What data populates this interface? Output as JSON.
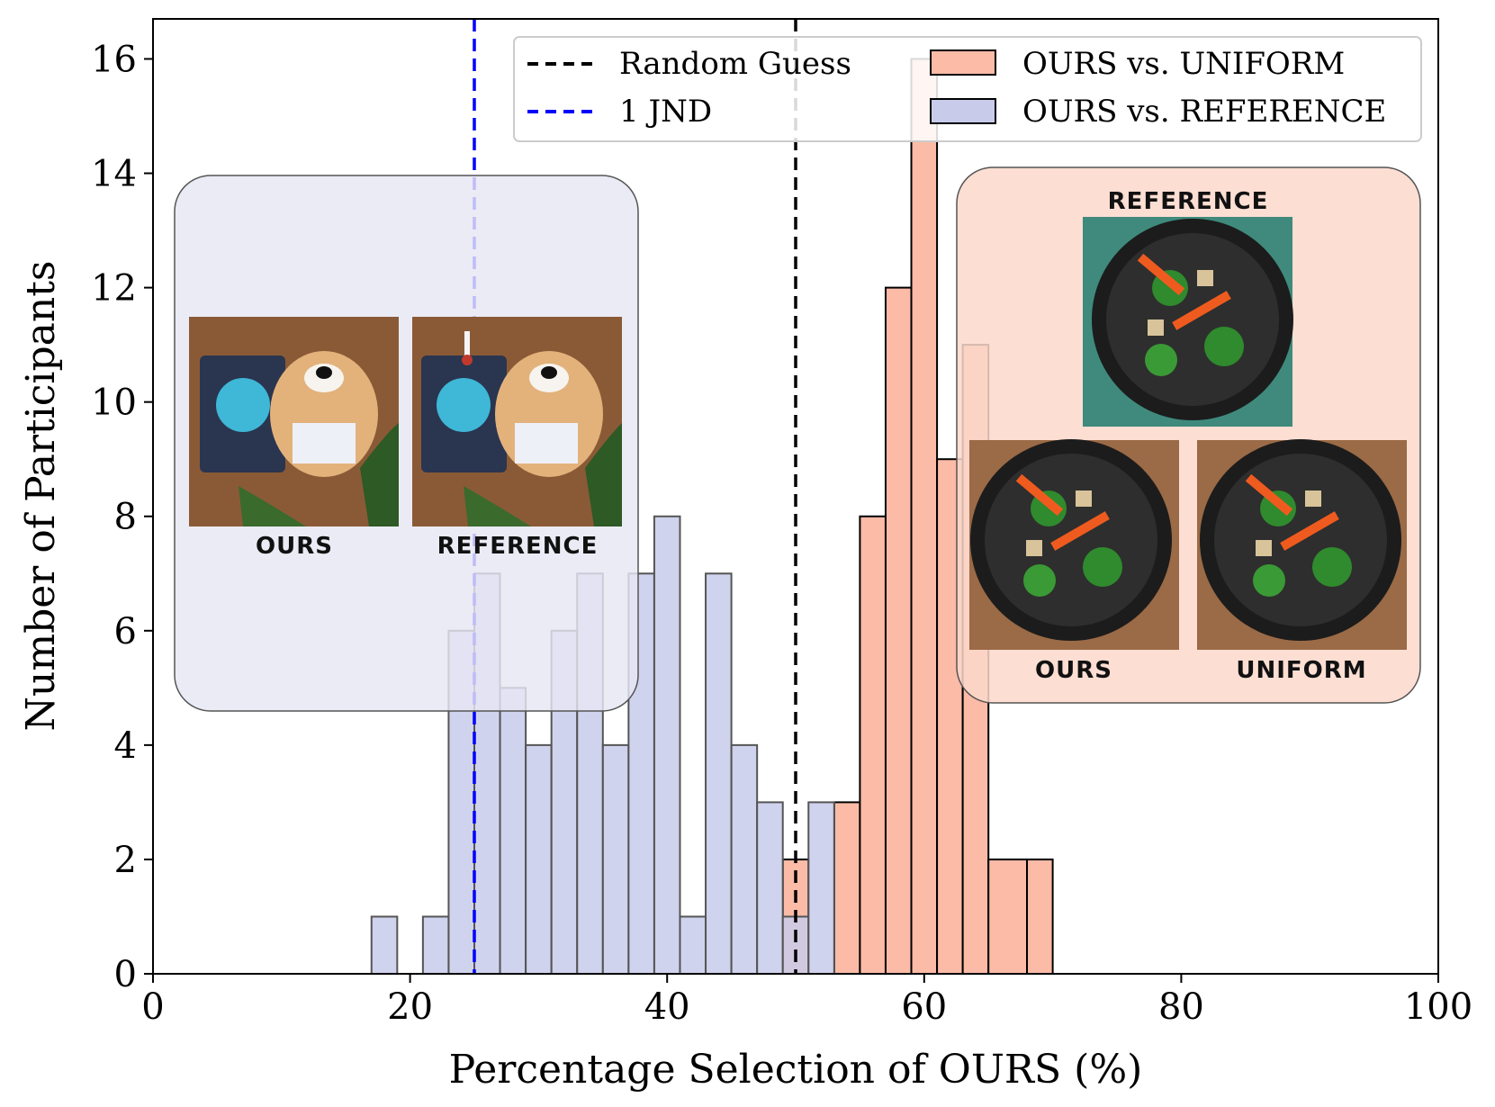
{
  "chart_data": {
    "type": "bar",
    "xlabel": "Percentage Selection of OURS (%)",
    "ylabel": "Number of Participants",
    "xlim": [
      0,
      100
    ],
    "ylim": [
      0,
      16.7
    ],
    "xticks": [
      0,
      20,
      40,
      60,
      80,
      100
    ],
    "yticks": [
      0,
      2,
      4,
      6,
      8,
      10,
      12,
      14,
      16
    ],
    "grid": false,
    "legend_position": "top-right",
    "series": [
      {
        "name": "OURS vs. UNIFORM",
        "color": "#fcbba7",
        "bins": [
          {
            "x0": 49,
            "x1": 51,
            "count": 2
          },
          {
            "x0": 53,
            "x1": 55,
            "count": 3
          },
          {
            "x0": 55,
            "x1": 57,
            "count": 8
          },
          {
            "x0": 57,
            "x1": 59,
            "count": 12
          },
          {
            "x0": 59,
            "x1": 61,
            "count": 16
          },
          {
            "x0": 61,
            "x1": 63,
            "count": 9
          },
          {
            "x0": 63,
            "x1": 65,
            "count": 11
          },
          {
            "x0": 65,
            "x1": 68,
            "count": 2
          },
          {
            "x0": 68,
            "x1": 70,
            "count": 2
          }
        ]
      },
      {
        "name": "OURS vs. REFERENCE",
        "color": "#c8cbea",
        "bins": [
          {
            "x0": 17,
            "x1": 19,
            "count": 1
          },
          {
            "x0": 21,
            "x1": 23,
            "count": 1
          },
          {
            "x0": 23,
            "x1": 25,
            "count": 6
          },
          {
            "x0": 25,
            "x1": 27,
            "count": 7
          },
          {
            "x0": 27,
            "x1": 29,
            "count": 5
          },
          {
            "x0": 29,
            "x1": 31,
            "count": 4
          },
          {
            "x0": 31,
            "x1": 33,
            "count": 6
          },
          {
            "x0": 33,
            "x1": 35,
            "count": 7
          },
          {
            "x0": 35,
            "x1": 37,
            "count": 4
          },
          {
            "x0": 37,
            "x1": 39,
            "count": 7
          },
          {
            "x0": 39,
            "x1": 41,
            "count": 8
          },
          {
            "x0": 41,
            "x1": 43,
            "count": 1
          },
          {
            "x0": 43,
            "x1": 45,
            "count": 7
          },
          {
            "x0": 45,
            "x1": 47,
            "count": 4
          },
          {
            "x0": 47,
            "x1": 49,
            "count": 3
          },
          {
            "x0": 49,
            "x1": 51,
            "count": 1
          },
          {
            "x0": 51,
            "x1": 53,
            "count": 3
          }
        ]
      }
    ],
    "reference_lines": [
      {
        "name": "Random Guess",
        "x": 50,
        "color": "#000000",
        "style": "dashed"
      },
      {
        "name": "1 JND",
        "x": 25,
        "color": "#0000ff",
        "style": "dashed"
      }
    ],
    "insets": {
      "left": {
        "color": "#e6e7f4",
        "labels": [
          "OURS",
          "REFERENCE"
        ]
      },
      "right": {
        "color": "#fcd8cb",
        "labels": [
          "REFERENCE",
          "OURS",
          "UNIFORM"
        ]
      }
    }
  }
}
